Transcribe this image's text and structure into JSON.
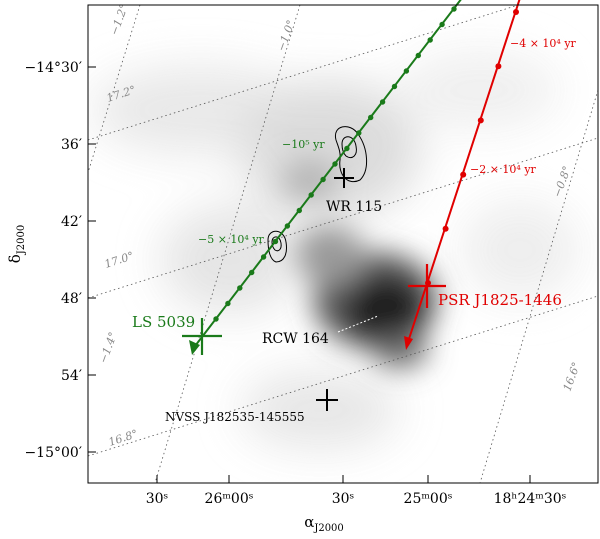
{
  "axes": {
    "xlabel": "α",
    "xlabel_sub": "J2000",
    "ylabel": "δ",
    "ylabel_sub": "J2000",
    "x_ticks": [
      "30ˢ",
      "26ᵐ00ˢ",
      "30ˢ",
      "25ᵐ00ˢ",
      "18ʰ24ᵐ30ˢ"
    ],
    "y_ticks": [
      "−14°30′",
      "36′",
      "42′",
      "48′",
      "54′",
      "−15°00′"
    ]
  },
  "galactic_grid": {
    "lon_labels": [
      "−1.2°",
      "−1.0°",
      "−0.8°",
      "−1.4°",
      "16.6°"
    ],
    "lat_labels": [
      "17.2°",
      "17.0°",
      "16.8°"
    ]
  },
  "objects": {
    "wr115": "WR 115",
    "ls5039": "LS 5039",
    "rcw164": "RCW 164",
    "psr": "PSR J1825-1446",
    "nvss": "NVSS J182535-145555"
  },
  "trajectories": {
    "green_epochs": [
      "−10⁵ yr",
      "−5 × 10⁴ yr"
    ],
    "red_epochs": [
      "−4 × 10⁴ yr",
      "−2 × 10⁴ yr"
    ]
  },
  "colors": {
    "ls5039_track": "#1a7a1a",
    "psr_track": "#e00000"
  }
}
